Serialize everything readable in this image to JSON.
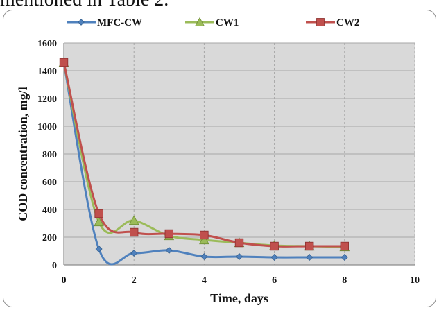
{
  "caption_fragment": "mentioned in Table 2.",
  "chart_data": {
    "type": "line",
    "xlabel": "Time, days",
    "ylabel": "COD concentration, mg/l",
    "xlim": [
      0,
      10
    ],
    "ylim": [
      0,
      1600
    ],
    "x_ticks": [
      0,
      2,
      4,
      6,
      8,
      10
    ],
    "y_ticks": [
      0,
      200,
      400,
      600,
      800,
      1000,
      1200,
      1400,
      1600
    ],
    "grid": true,
    "legend_position": "top",
    "series": [
      {
        "name": "MFC-CW",
        "color": "#4f81bd",
        "marker": "diamond",
        "x": [
          0,
          1,
          2,
          3,
          4,
          5,
          6,
          7,
          8
        ],
        "y": [
          1460,
          115,
          85,
          105,
          60,
          60,
          55,
          55,
          55
        ]
      },
      {
        "name": "CW1",
        "color": "#9bbb59",
        "marker": "triangle",
        "x": [
          0,
          1,
          2,
          3,
          4,
          5,
          6,
          7,
          8
        ],
        "y": [
          1460,
          310,
          320,
          210,
          180,
          160,
          140,
          135,
          130
        ]
      },
      {
        "name": "CW2",
        "color": "#c0504d",
        "marker": "square",
        "x": [
          0,
          1,
          2,
          3,
          4,
          5,
          6,
          7,
          8
        ],
        "y": [
          1460,
          370,
          235,
          225,
          215,
          160,
          135,
          135,
          135
        ]
      }
    ]
  }
}
